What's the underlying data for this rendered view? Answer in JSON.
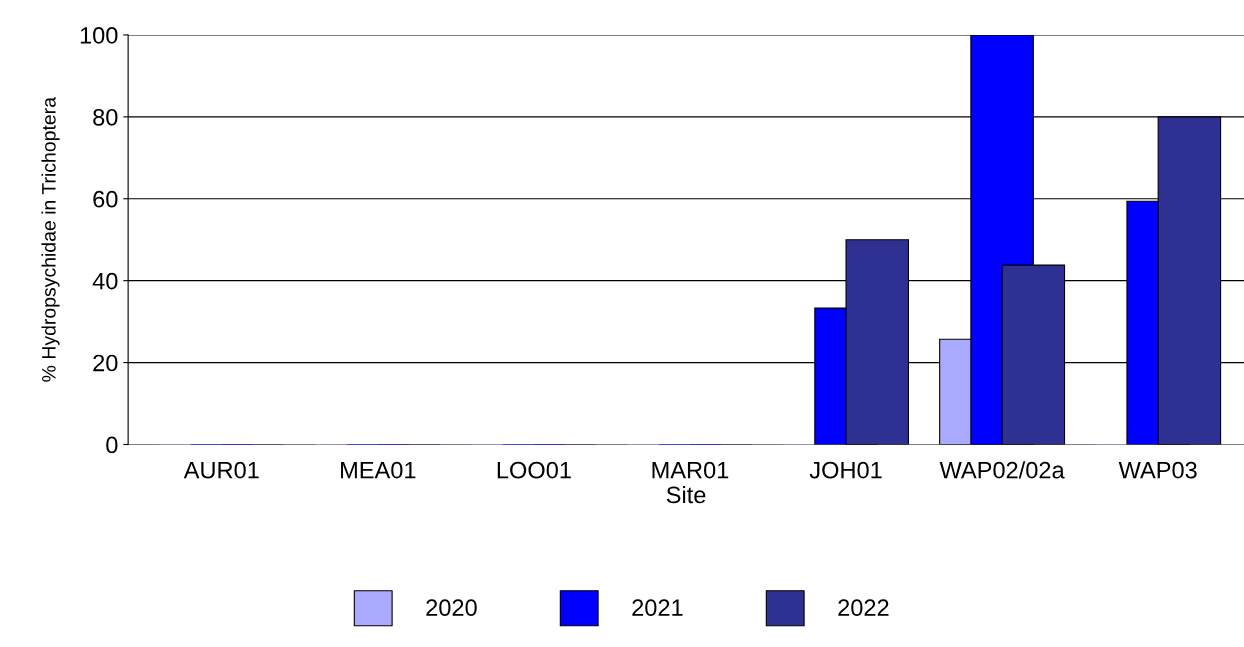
{
  "chart_data": {
    "type": "bar",
    "xlabel": "Site",
    "ylabel": "% Hydropsychidae in Trichoptera",
    "categories": [
      "AUR01",
      "MEA01",
      "LOO01",
      "MAR01",
      "JOH01",
      "WAP02/02a",
      "WAP03"
    ],
    "series": [
      {
        "name": "2020",
        "color": "#aaaaff",
        "values": [
          0,
          0,
          0,
          0,
          0,
          25.7,
          0
        ]
      },
      {
        "name": "2021",
        "color": "#0000ff",
        "values": [
          0,
          0,
          0,
          0,
          33.3,
          100,
          59.4
        ]
      },
      {
        "name": "2022",
        "color": "#2e3192",
        "values": [
          0,
          0,
          0,
          0,
          50,
          43.8,
          80
        ]
      }
    ],
    "ylim": [
      0,
      100
    ],
    "yticks": [
      0,
      20,
      40,
      60,
      80,
      100
    ],
    "grid": "y",
    "legend": "bottom"
  }
}
